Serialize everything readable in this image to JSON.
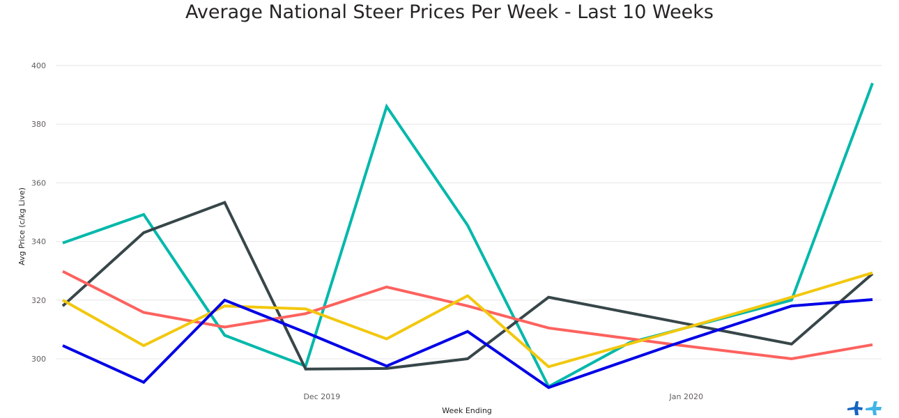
{
  "chart_data": {
    "type": "line",
    "title": "Average National Steer Prices Per Week - Last 10 Weeks",
    "xlabel": "Week Ending",
    "ylabel": "Avg Price (c/kg Live)",
    "ylim": [
      290,
      405
    ],
    "yticks": [
      300,
      320,
      340,
      360,
      380,
      400
    ],
    "x": [
      0,
      1,
      2,
      3,
      4,
      5,
      6,
      7,
      8,
      9,
      10
    ],
    "xtick_labels": [
      {
        "x": 3.2,
        "label": "Dec 2019"
      },
      {
        "x": 7.7,
        "label": "Jan 2020"
      }
    ],
    "grid": true,
    "series": [
      {
        "color": "#01B8AA",
        "values": [
          339.5,
          349.2,
          308.0,
          297.5,
          386.0,
          345.5,
          290.5,
          305.5,
          320.0,
          null,
          394.0
        ],
        "x": [
          0,
          1,
          2,
          3,
          4,
          5,
          6,
          7,
          9,
          null,
          10
        ]
      },
      {
        "color": "#374649",
        "values": [
          318.0,
          343.0,
          353.3,
          296.5,
          296.7,
          300.0,
          321.0,
          313.0,
          305.0,
          329.0
        ],
        "x": [
          0,
          1,
          2,
          3,
          4,
          5,
          6,
          7.5,
          9,
          10
        ]
      },
      {
        "color": "#FD625E",
        "values": [
          329.8,
          315.8,
          310.8,
          315.4,
          324.5,
          318.0,
          310.5,
          305.0,
          300.0,
          304.8
        ],
        "x": [
          0,
          1,
          2,
          3,
          4,
          5,
          6,
          7.5,
          9,
          10
        ]
      },
      {
        "color": "#F2C80F",
        "values": [
          320.0,
          304.5,
          318.0,
          317.0,
          306.8,
          321.5,
          297.3,
          309.0,
          321.0,
          329.3
        ],
        "x": [
          0,
          1,
          2,
          3,
          4,
          5,
          6,
          7.5,
          9,
          10
        ]
      },
      {
        "color": "#0000E6",
        "values": [
          304.5,
          292.0,
          320.0,
          309.0,
          297.5,
          309.3,
          290.2,
          304.5,
          318.0,
          320.2
        ],
        "x": [
          0,
          1,
          2,
          3,
          4,
          5,
          6,
          7.5,
          9,
          10
        ]
      }
    ]
  },
  "logo": {
    "name": "brand-logo",
    "colors": [
      "#1565C0",
      "#42B4E6"
    ]
  }
}
